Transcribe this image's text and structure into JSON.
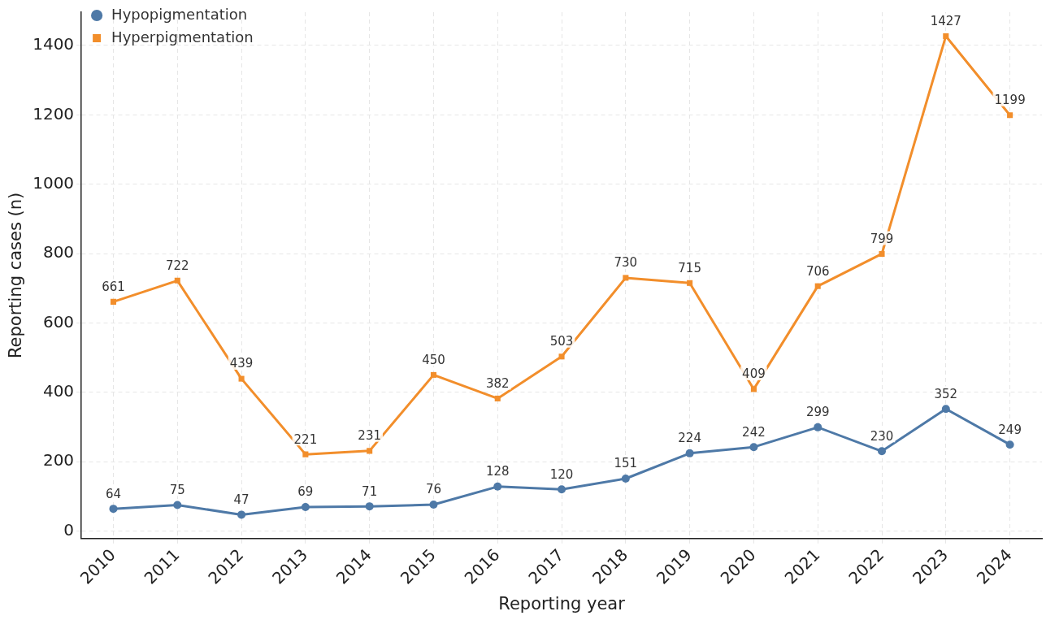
{
  "chart_data": {
    "type": "line",
    "xlabel": "Reporting year",
    "ylabel": "Reporting cases (n)",
    "categories": [
      "2010",
      "2011",
      "2012",
      "2013",
      "2014",
      "2015",
      "2016",
      "2017",
      "2018",
      "2019",
      "2020",
      "2021",
      "2022",
      "2023",
      "2024"
    ],
    "series": [
      {
        "name": "Hypopigmentation",
        "color": "#4e79a7",
        "marker": "circle",
        "values": [
          64,
          75,
          47,
          69,
          71,
          76,
          128,
          120,
          151,
          224,
          242,
          299,
          230,
          352,
          249
        ]
      },
      {
        "name": "Hyperpigmentation",
        "color": "#f28e2b",
        "marker": "square",
        "values": [
          661,
          722,
          439,
          221,
          231,
          450,
          382,
          503,
          730,
          715,
          409,
          706,
          799,
          1427,
          1199
        ]
      }
    ],
    "ylim": [
      -22,
      1496
    ],
    "yticks": [
      0,
      200,
      400,
      600,
      800,
      1000,
      1200,
      1400
    ],
    "grid": true,
    "legend": "top left",
    "data_labels": true,
    "line_style": "solid"
  }
}
